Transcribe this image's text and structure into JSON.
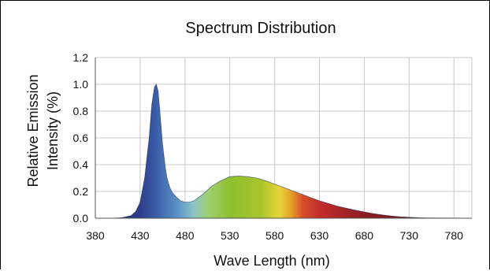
{
  "chart_data": {
    "type": "area",
    "title": "Spectrum Distribution",
    "xlabel": "Wave Length (nm)",
    "ylabel_lines": [
      "Relative Emission",
      "Intensity (%)"
    ],
    "xlim": [
      380,
      800
    ],
    "ylim": [
      0,
      1.2
    ],
    "x_ticks": [
      380,
      430,
      480,
      530,
      580,
      630,
      680,
      730,
      780
    ],
    "y_ticks": [
      0.0,
      0.2,
      0.4,
      0.6,
      0.8,
      1.0,
      1.2
    ],
    "y_tick_labels": [
      "0.0",
      "0.2",
      "0.4",
      "0.6",
      "0.8",
      "1.0",
      "1.2"
    ],
    "grid": true,
    "legend": "none",
    "series": [
      {
        "x": [
          380,
          400,
          410,
          420,
          425,
          430,
          435,
          440,
          443,
          446,
          448,
          450,
          452,
          455,
          458,
          460,
          463,
          466,
          470,
          475,
          480,
          485,
          490,
          500,
          510,
          520,
          530,
          540,
          550,
          560,
          570,
          580,
          590,
          600,
          610,
          620,
          630,
          640,
          650,
          660,
          670,
          680,
          690,
          700,
          710,
          720,
          730,
          740,
          750,
          760,
          770,
          780,
          790,
          795
        ],
        "values": [
          0.0,
          0.0,
          0.005,
          0.02,
          0.05,
          0.12,
          0.3,
          0.6,
          0.85,
          0.98,
          1.0,
          0.95,
          0.8,
          0.55,
          0.38,
          0.3,
          0.23,
          0.19,
          0.16,
          0.13,
          0.12,
          0.12,
          0.13,
          0.18,
          0.24,
          0.28,
          0.31,
          0.315,
          0.31,
          0.3,
          0.28,
          0.255,
          0.23,
          0.205,
          0.18,
          0.155,
          0.13,
          0.11,
          0.09,
          0.075,
          0.06,
          0.047,
          0.035,
          0.025,
          0.017,
          0.011,
          0.007,
          0.004,
          0.003,
          0.002,
          0.001,
          0.001,
          0.0,
          0.0
        ]
      }
    ]
  }
}
